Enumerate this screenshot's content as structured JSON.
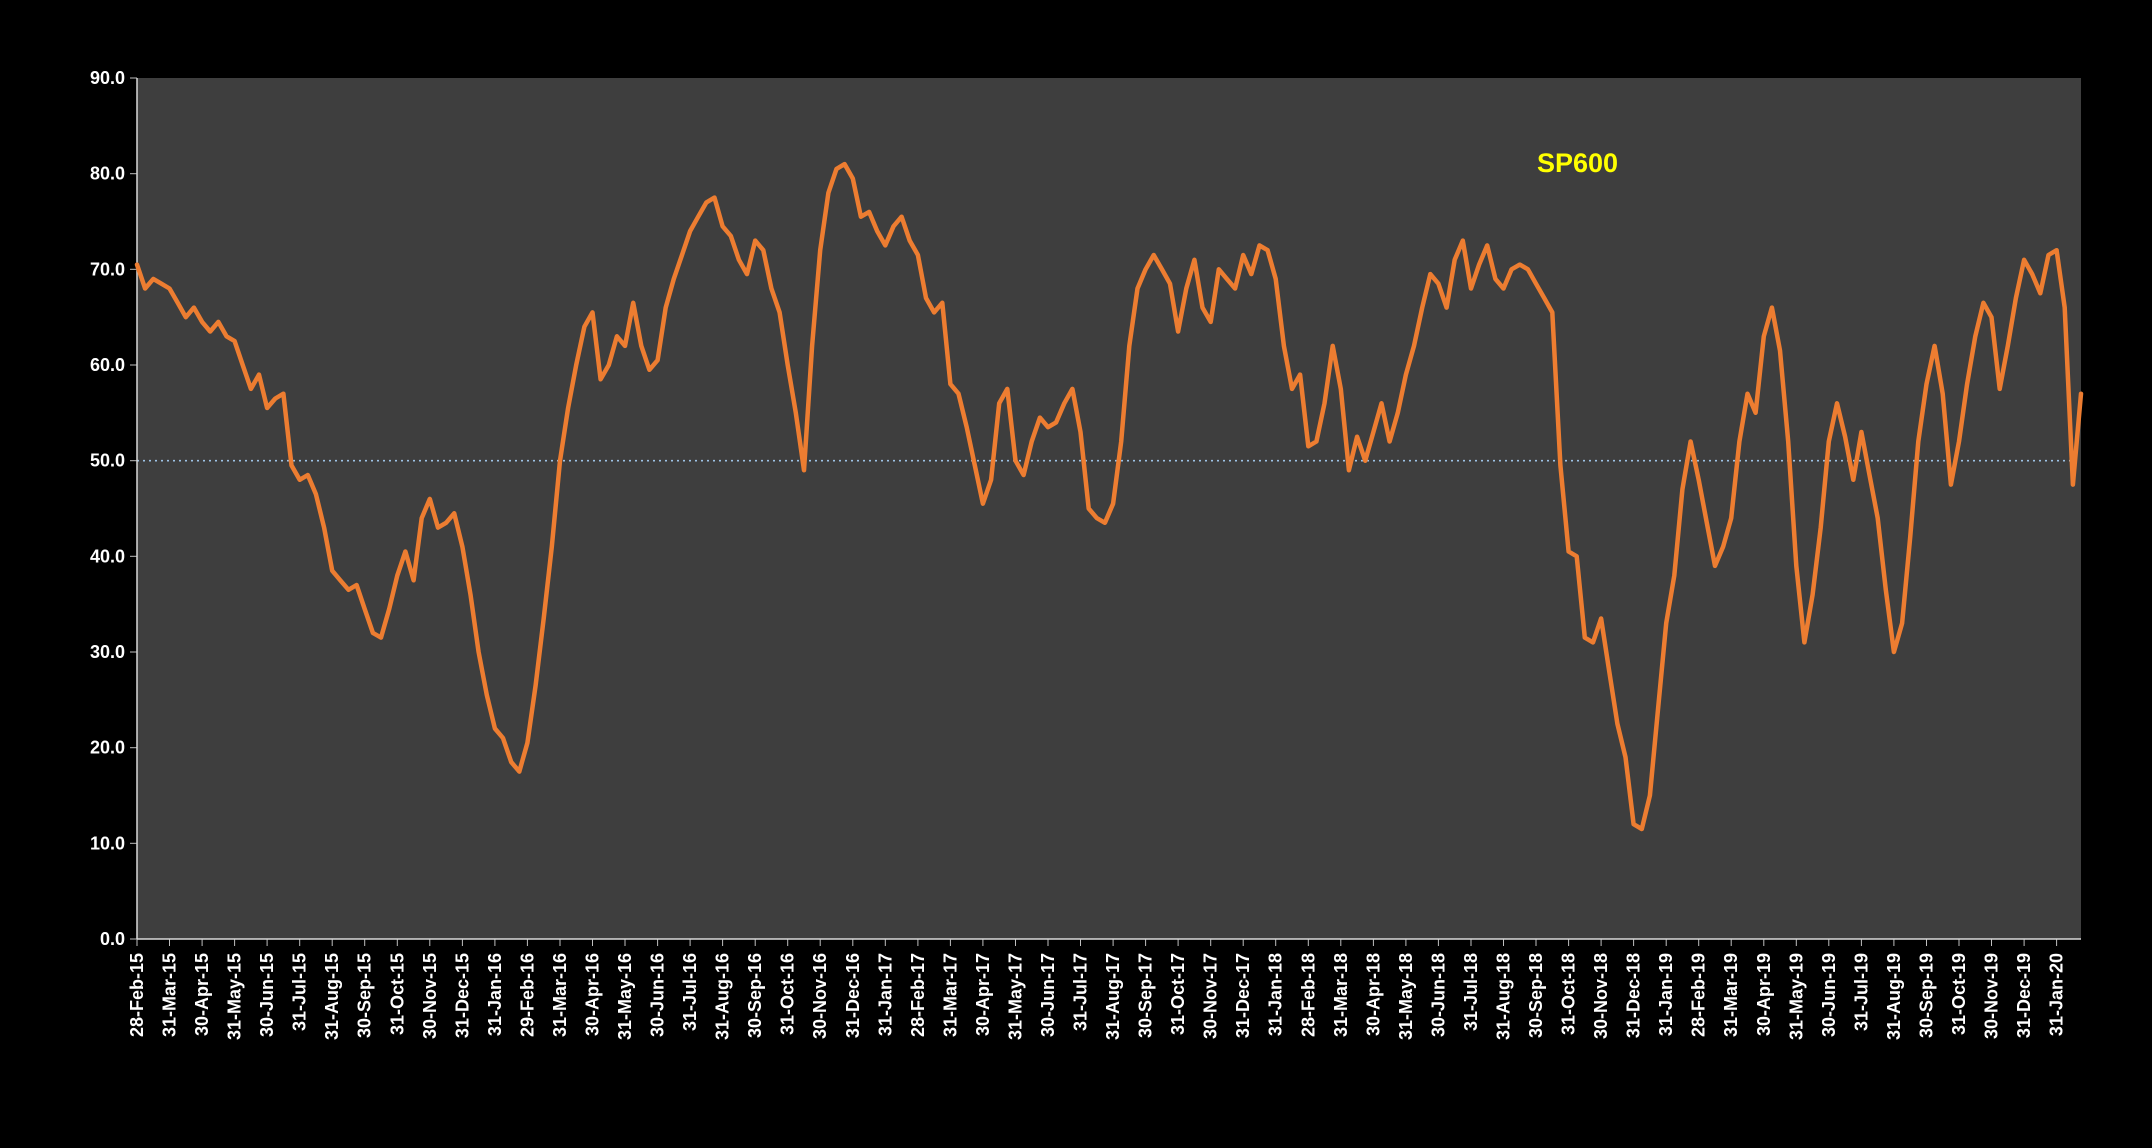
{
  "chart_data": {
    "type": "line",
    "title": "",
    "legend_position": "inside-top-right",
    "grid": "off",
    "x_label_rotation": -90,
    "points_per_tick": 4,
    "ylim": [
      0,
      90
    ],
    "y_tick_labels": [
      "0.0",
      "10.0",
      "20.0",
      "30.0",
      "40.0",
      "50.0",
      "60.0",
      "70.0",
      "80.0",
      "90.0"
    ],
    "reference_line": {
      "value": 50,
      "style": "dotted",
      "color": "#9DC3E6"
    },
    "colors": {
      "page_bg": "#000000",
      "plot_bg": "#3E3E3E",
      "axis": "#D9D9D9",
      "tick": "#BFBFBF",
      "tick_text": "#FFFFFF",
      "legend_text": "#FFFF00",
      "series": "#ED7D31"
    },
    "x_tick_labels": [
      "28-Feb-15",
      "31-Mar-15",
      "30-Apr-15",
      "31-May-15",
      "30-Jun-15",
      "31-Jul-15",
      "31-Aug-15",
      "30-Sep-15",
      "31-Oct-15",
      "30-Nov-15",
      "31-Dec-15",
      "31-Jan-16",
      "29-Feb-16",
      "31-Mar-16",
      "30-Apr-16",
      "31-May-16",
      "30-Jun-16",
      "31-Jul-16",
      "31-Aug-16",
      "30-Sep-16",
      "31-Oct-16",
      "30-Nov-16",
      "31-Dec-16",
      "31-Jan-17",
      "28-Feb-17",
      "31-Mar-17",
      "30-Apr-17",
      "31-May-17",
      "30-Jun-17",
      "31-Jul-17",
      "31-Aug-17",
      "30-Sep-17",
      "31-Oct-17",
      "30-Nov-17",
      "31-Dec-17",
      "31-Jan-18",
      "28-Feb-18",
      "31-Mar-18",
      "30-Apr-18",
      "31-May-18",
      "30-Jun-18",
      "31-Jul-18",
      "31-Aug-18",
      "30-Sep-18",
      "31-Oct-18",
      "30-Nov-18",
      "31-Dec-18",
      "31-Jan-19",
      "28-Feb-19",
      "31-Mar-19",
      "30-Apr-19",
      "31-May-19",
      "30-Jun-19",
      "31-Jul-19",
      "31-Aug-19",
      "30-Sep-19",
      "31-Oct-19",
      "30-Nov-19",
      "31-Dec-19",
      "31-Jan-20"
    ],
    "series": [
      {
        "name": "SP600",
        "color": "#ED7D31",
        "values": [
          70.5,
          68.0,
          69.0,
          68.5,
          68.0,
          66.5,
          65.0,
          66.0,
          64.5,
          63.5,
          64.5,
          63.0,
          62.5,
          60.0,
          57.5,
          59.0,
          55.5,
          56.5,
          57.0,
          49.5,
          48.0,
          48.5,
          46.5,
          43.0,
          38.5,
          37.5,
          36.5,
          37.0,
          34.5,
          32.0,
          31.5,
          34.5,
          38.0,
          40.5,
          37.5,
          44.0,
          46.0,
          43.0,
          43.5,
          44.5,
          41.0,
          36.0,
          30.0,
          25.5,
          22.0,
          21.0,
          18.5,
          17.5,
          20.5,
          26.5,
          33.5,
          41.0,
          50.0,
          55.5,
          60.0,
          64.0,
          65.5,
          58.5,
          60.0,
          63.0,
          62.0,
          66.5,
          62.0,
          59.5,
          60.5,
          66.0,
          69.0,
          71.5,
          74.0,
          75.5,
          77.0,
          77.5,
          74.5,
          73.5,
          71.0,
          69.5,
          73.0,
          72.0,
          68.0,
          65.5,
          60.0,
          55.0,
          49.0,
          62.0,
          72.0,
          78.0,
          80.5,
          81.0,
          79.5,
          75.5,
          76.0,
          74.0,
          72.5,
          74.5,
          75.5,
          73.0,
          71.5,
          67.0,
          65.5,
          66.5,
          58.0,
          57.0,
          53.5,
          49.5,
          45.5,
          48.0,
          56.0,
          57.5,
          50.0,
          48.5,
          52.0,
          54.5,
          53.5,
          54.0,
          56.0,
          57.5,
          53.0,
          45.0,
          44.0,
          43.5,
          45.5,
          52.0,
          62.0,
          68.0,
          70.0,
          71.5,
          70.0,
          68.5,
          63.5,
          68.0,
          71.0,
          66.0,
          64.5,
          70.0,
          69.0,
          68.0,
          71.5,
          69.5,
          72.5,
          72.0,
          69.0,
          62.0,
          57.5,
          59.0,
          51.5,
          52.0,
          56.0,
          62.0,
          57.5,
          49.0,
          52.5,
          50.0,
          53.0,
          56.0,
          52.0,
          55.0,
          59.0,
          62.0,
          66.0,
          69.5,
          68.5,
          66.0,
          71.0,
          73.0,
          68.0,
          70.5,
          72.5,
          69.0,
          68.0,
          70.0,
          70.5,
          70.0,
          68.5,
          67.0,
          65.5,
          49.5,
          40.5,
          40.0,
          31.5,
          31.0,
          33.5,
          28.0,
          22.5,
          19.0,
          12.0,
          11.5,
          15.0,
          24.0,
          33.0,
          38.0,
          47.0,
          52.0,
          48.0,
          43.5,
          39.0,
          41.0,
          44.0,
          52.0,
          57.0,
          55.0,
          63.0,
          66.0,
          61.5,
          52.0,
          39.0,
          31.0,
          36.0,
          43.0,
          52.0,
          56.0,
          52.5,
          48.0,
          53.0,
          48.5,
          44.0,
          36.5,
          30.0,
          33.0,
          42.0,
          52.0,
          58.0,
          62.0,
          57.0,
          47.5,
          52.0,
          58.0,
          63.0,
          66.5,
          65.0,
          57.5,
          62.0,
          67.0,
          71.0,
          69.5,
          67.5,
          71.5,
          72.0,
          66.0,
          47.5,
          57.0
        ]
      }
    ]
  }
}
